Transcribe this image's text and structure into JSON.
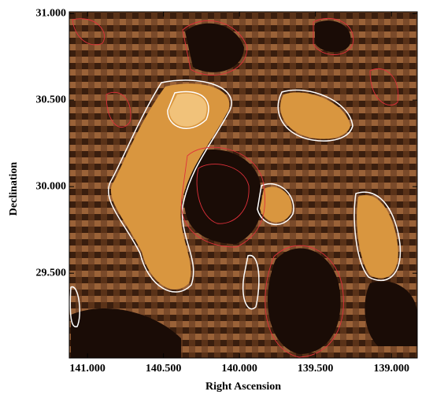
{
  "chart_data": {
    "type": "map",
    "xlabel": "Right Ascension",
    "ylabel": "Declination",
    "xlim": [
      141.12,
      138.83
    ],
    "ylim": [
      29.01,
      31.01
    ],
    "xticks": [
      {
        "value": 141,
        "label": "141.000"
      },
      {
        "value": 140.5,
        "label": "140.500"
      },
      {
        "value": 140,
        "label": "140.000"
      },
      {
        "value": 139.5,
        "label": "139.500"
      },
      {
        "value": 139,
        "label": "139.000"
      }
    ],
    "yticks": [
      {
        "value": 31,
        "label": "31.000"
      },
      {
        "value": 30.5,
        "label": "30.500"
      },
      {
        "value": 30,
        "label": "30.000"
      },
      {
        "value": 29.5,
        "label": "29.500"
      }
    ]
  }
}
